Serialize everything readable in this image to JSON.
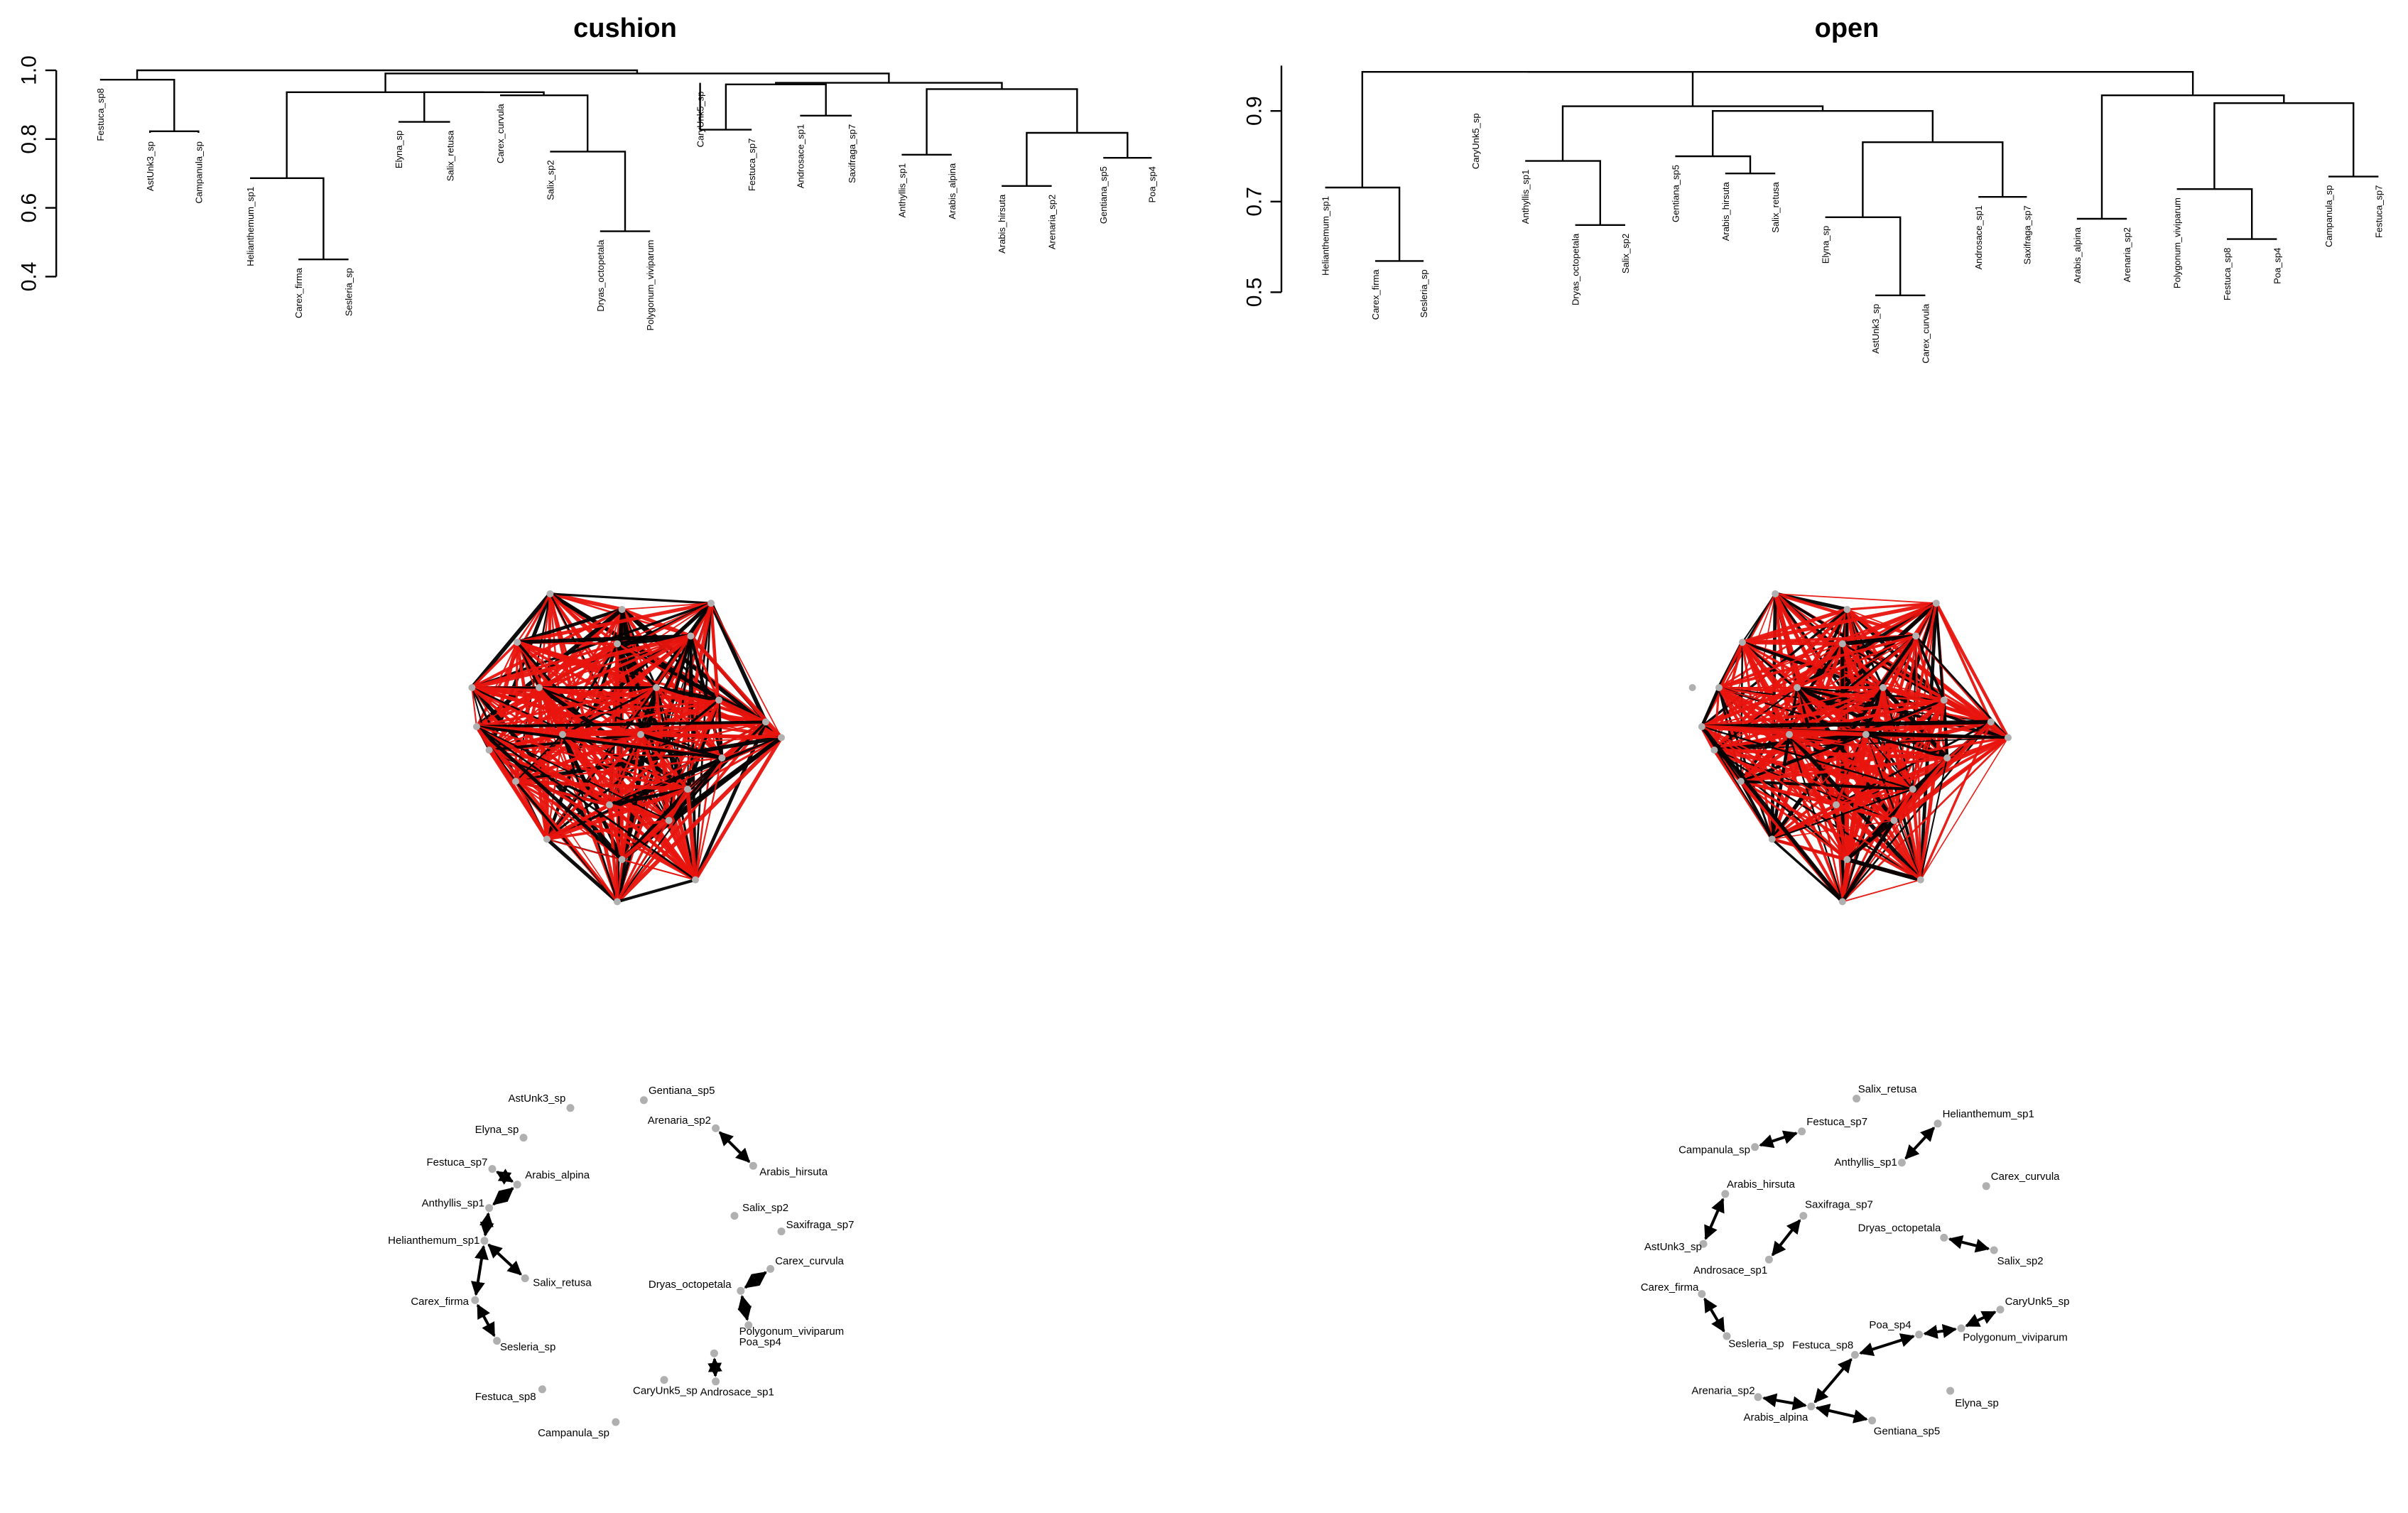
{
  "panels": [
    {
      "id": "cushion",
      "title": "cushion",
      "y_axis_ticks": [
        "0.4",
        "0.6",
        "0.8",
        "1.0"
      ],
      "leaves": [
        "Festuca_sp8",
        "AstUnk3_sp",
        "Campanula_sp",
        "Helianthemum_sp1",
        "Carex_firma",
        "Sesleria_sp",
        "Elyna_sp",
        "Salix_retusa",
        "Carex_curvula",
        "Salix_sp2",
        "Dryas_octopetala",
        "Polygonum_viviparum",
        "CaryUnk5_sp",
        "Festuca_sp7",
        "Androsace_sp1",
        "Saxifraga_sp7",
        "Anthyllis_sp1",
        "Arabis_alpina",
        "Arabis_hirsuta",
        "Arenaria_sp2",
        "Gentiana_sp5",
        "Poa_sp4"
      ],
      "network_nodes": [
        {
          "label": "AstUnk3_sp"
        },
        {
          "label": "Gentiana_sp5"
        },
        {
          "label": "Elyna_sp"
        },
        {
          "label": "Arenaria_sp2"
        },
        {
          "label": "Festuca_sp7"
        },
        {
          "label": "Arabis_alpina"
        },
        {
          "label": "Arabis_hirsuta"
        },
        {
          "label": "Anthyllis_sp1"
        },
        {
          "label": "Salix_sp2"
        },
        {
          "label": "Saxifraga_sp7"
        },
        {
          "label": "Helianthemum_sp1"
        },
        {
          "label": "Carex_curvula"
        },
        {
          "label": "Salix_retusa"
        },
        {
          "label": "Dryas_octopetala"
        },
        {
          "label": "Carex_firma"
        },
        {
          "label": "Polygonum_viviparum"
        },
        {
          "label": "Sesleria_sp"
        },
        {
          "label": "Poa_sp4"
        },
        {
          "label": "CaryUnk5_sp"
        },
        {
          "label": "Androsace_sp1"
        },
        {
          "label": "Festuca_sp8"
        },
        {
          "label": "Campanula_sp"
        }
      ]
    },
    {
      "id": "open",
      "title": "open",
      "y_axis_ticks": [
        "0.5",
        "0.7",
        "0.9"
      ],
      "leaves": [
        "Helianthemum_sp1",
        "Carex_firma",
        "Sesleria_sp",
        "CaryUnk5_sp",
        "Anthyllis_sp1",
        "Dryas_octopetala",
        "Salix_sp2",
        "Gentiana_sp5",
        "Arabis_hirsuta",
        "Salix_retusa",
        "Elyna_sp",
        "AstUnk3_sp",
        "Carex_curvula",
        "Androsace_sp1",
        "Saxifraga_sp7",
        "Arabis_alpina",
        "Arenaria_sp2",
        "Polygonum_viviparum",
        "Festuca_sp8",
        "Poa_sp4",
        "Campanula_sp",
        "Festuca_sp7"
      ],
      "network_nodes": [
        {
          "label": "Salix_retusa"
        },
        {
          "label": "Helianthemum_sp1"
        },
        {
          "label": "Festuca_sp7"
        },
        {
          "label": "Campanula_sp"
        },
        {
          "label": "Anthyllis_sp1"
        },
        {
          "label": "Carex_curvula"
        },
        {
          "label": "Arabis_hirsuta"
        },
        {
          "label": "Saxifraga_sp7"
        },
        {
          "label": "Dryas_octopetala"
        },
        {
          "label": "AstUnk3_sp"
        },
        {
          "label": "Salix_sp2"
        },
        {
          "label": "Androsace_sp1"
        },
        {
          "label": "Carex_firma"
        },
        {
          "label": "CaryUnk5_sp"
        },
        {
          "label": "Poa_sp4"
        },
        {
          "label": "Polygonum_viviparum"
        },
        {
          "label": "Sesleria_sp"
        },
        {
          "label": "Festuca_sp8"
        },
        {
          "label": "Arenaria_sp2"
        },
        {
          "label": "Elyna_sp"
        },
        {
          "label": "Arabis_alpina"
        },
        {
          "label": "Gentiana_sp5"
        }
      ]
    }
  ],
  "colors": {
    "dendrogram_line": "#000000",
    "negative_edge": "#e8140e",
    "positive_edge": "#000000",
    "node": "#b0b0b0",
    "arrow": "#000000"
  }
}
